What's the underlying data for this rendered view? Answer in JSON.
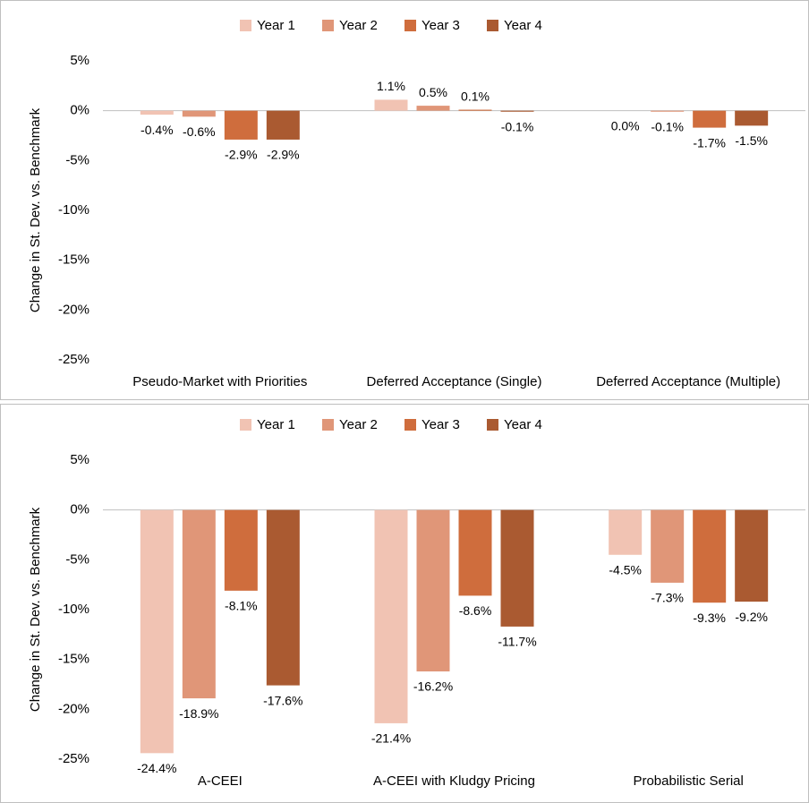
{
  "chart_data": [
    {
      "type": "bar",
      "ylabel": "Change in St. Dev. vs. Benchmark",
      "categories": [
        "Pseudo-Market with Priorities",
        "Deferred Acceptance (Single)",
        "Deferred Acceptance (Multiple)"
      ],
      "series": [
        {
          "name": "Year 1",
          "color": "#f1c3b3",
          "values": [
            -0.4,
            1.1,
            0.0
          ],
          "value_labels": [
            "-0.4%",
            "1.1%",
            "0.0%"
          ]
        },
        {
          "name": "Year 2",
          "color": "#e09678",
          "values": [
            -0.6,
            0.5,
            -0.1
          ],
          "value_labels": [
            "-0.6%",
            "0.5%",
            "-0.1%"
          ]
        },
        {
          "name": "Year 3",
          "color": "#cf6d3d",
          "values": [
            -2.9,
            0.1,
            -1.7
          ],
          "value_labels": [
            "-2.9%",
            "0.1%",
            "-1.7%"
          ]
        },
        {
          "name": "Year 4",
          "color": "#aa5a31",
          "values": [
            -2.9,
            -0.1,
            -1.5
          ],
          "value_labels": [
            "-2.9%",
            "-0.1%",
            "-1.5%"
          ]
        }
      ],
      "ylim": [
        -25,
        5
      ],
      "yticks": [
        {
          "value": 5,
          "label": "5%"
        },
        {
          "value": 0,
          "label": "0%"
        },
        {
          "value": -5,
          "label": "-5%"
        },
        {
          "value": -10,
          "label": "-10%"
        },
        {
          "value": -15,
          "label": "-15%"
        },
        {
          "value": -20,
          "label": "-20%"
        },
        {
          "value": -25,
          "label": "-25%"
        }
      ],
      "legend": "top",
      "grid": false
    },
    {
      "type": "bar",
      "ylabel": "Change in St. Dev. vs. Benchmark",
      "categories": [
        "A-CEEI",
        "A-CEEI with Kludgy Pricing",
        "Probabilistic Serial"
      ],
      "series": [
        {
          "name": "Year 1",
          "color": "#f1c3b3",
          "values": [
            -24.4,
            -21.4,
            -4.5
          ],
          "value_labels": [
            "-24.4%",
            "-21.4%",
            "-4.5%"
          ]
        },
        {
          "name": "Year 2",
          "color": "#e09678",
          "values": [
            -18.9,
            -16.2,
            -7.3
          ],
          "value_labels": [
            "-18.9%",
            "-16.2%",
            "-7.3%"
          ]
        },
        {
          "name": "Year 3",
          "color": "#cf6d3d",
          "values": [
            -8.1,
            -8.6,
            -9.3
          ],
          "value_labels": [
            "-8.1%",
            "-8.6%",
            "-9.3%"
          ]
        },
        {
          "name": "Year 4",
          "color": "#aa5a31",
          "values": [
            -17.6,
            -11.7,
            -9.2
          ],
          "value_labels": [
            "-17.6%",
            "-11.7%",
            "-9.2%"
          ]
        }
      ],
      "ylim": [
        -25,
        5
      ],
      "yticks": [
        {
          "value": 5,
          "label": "5%"
        },
        {
          "value": 0,
          "label": "0%"
        },
        {
          "value": -5,
          "label": "-5%"
        },
        {
          "value": -10,
          "label": "-10%"
        },
        {
          "value": -15,
          "label": "-15%"
        },
        {
          "value": -20,
          "label": "-20%"
        },
        {
          "value": -25,
          "label": "-25%"
        }
      ],
      "legend": "top",
      "grid": false
    }
  ]
}
